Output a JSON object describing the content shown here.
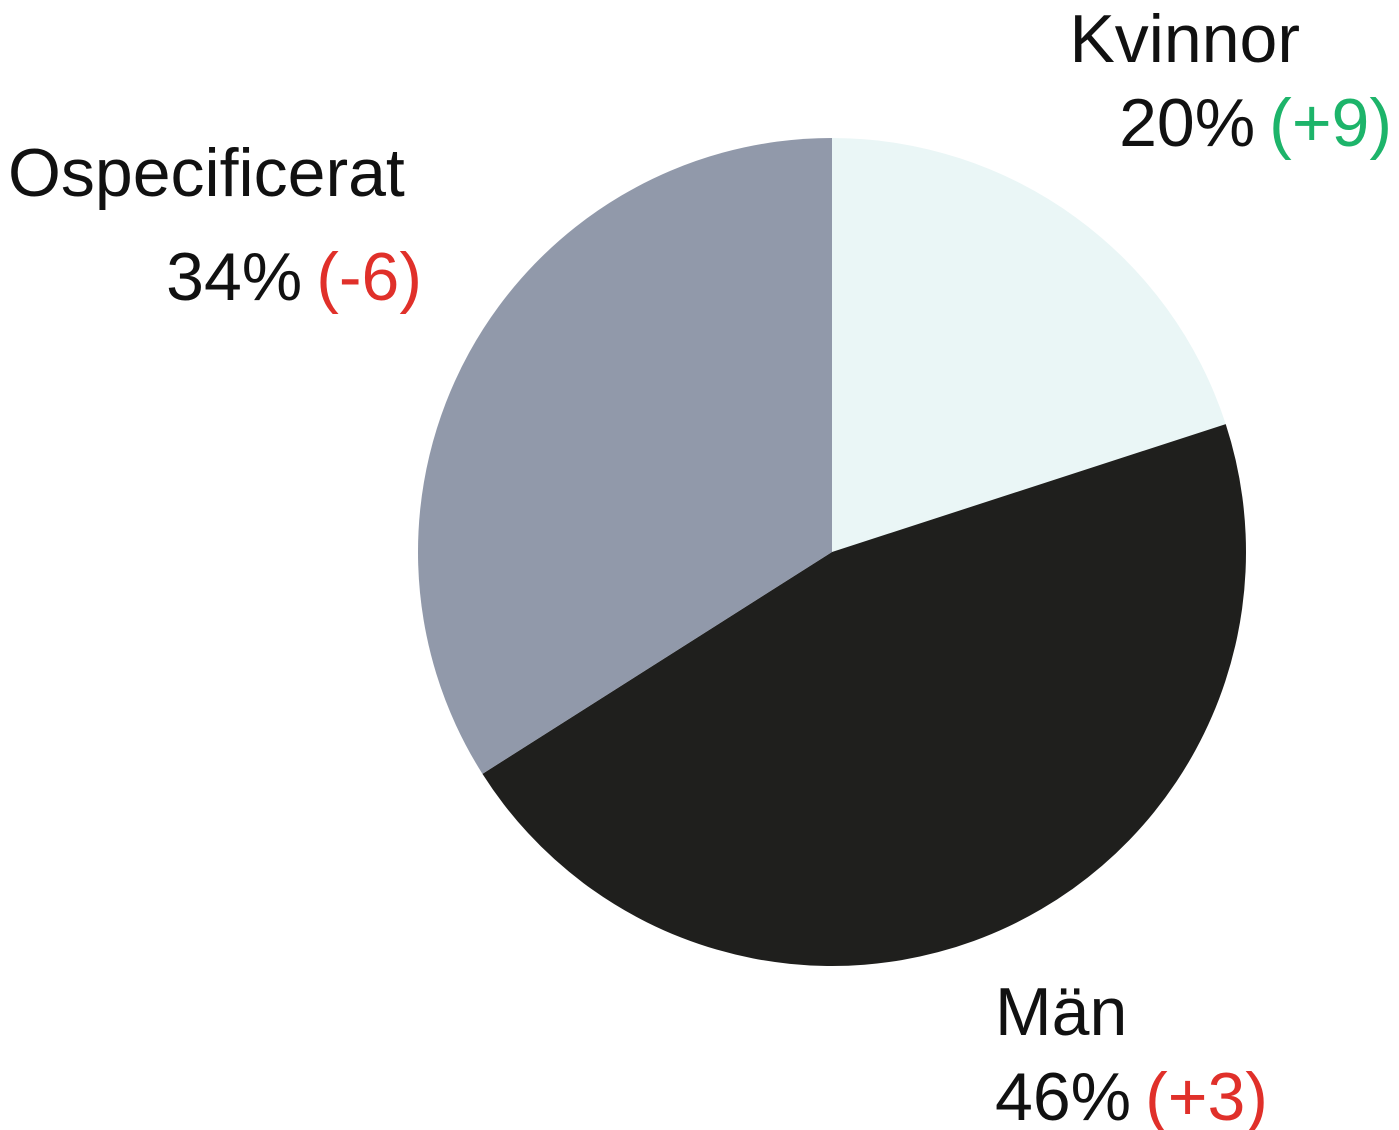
{
  "chart_data": {
    "type": "pie",
    "categories": [
      "Kvinnor",
      "Män",
      "Ospecificerat"
    ],
    "values": [
      20,
      46,
      34
    ],
    "value_labels": [
      "20%",
      "46%",
      "34%"
    ],
    "change_labels": [
      "(+9)",
      "(+3)",
      "(-6)"
    ],
    "change_colors": [
      "#1db46a",
      "#e0302a",
      "#e0302a"
    ],
    "colors": [
      "#eaf6f6",
      "#1f1f1d",
      "#9199aa"
    ]
  }
}
